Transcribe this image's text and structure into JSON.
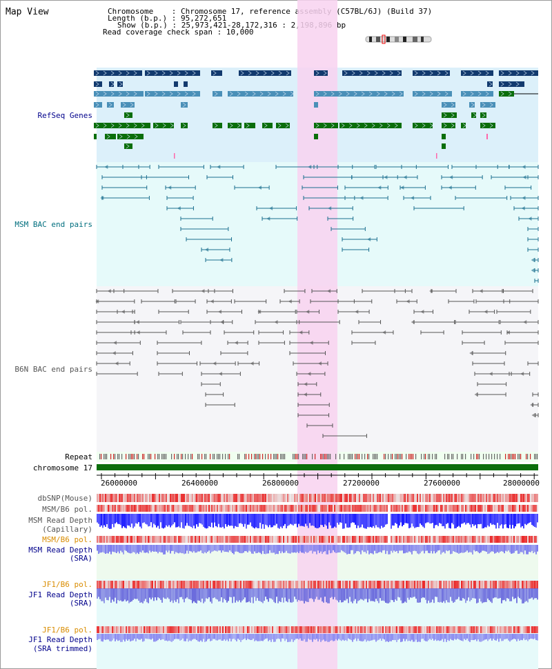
{
  "title": "Map View",
  "header": {
    "chromosome_line": "Chromosome    : Chromosome 17, reference assembly (C57BL/6J) (Build 37)",
    "length_line": "Length (b.p.) : 95,272,651",
    "show_line": "Show (b.p.) : 25,973,421-28,172,316 : 2,198,896 bp",
    "coverage_line": "Read coverage check span : 10,000"
  },
  "tracks": {
    "refseq": "RefSeq Genes",
    "msm_bac": "MSM BAC end pairs",
    "b6n_bac": "B6N BAC end pairs",
    "repeat": "Repeat",
    "chromosome": "chromosome 17",
    "dbsnp": "dbSNP(Mouse)",
    "msm_b6_pol_1": "MSM/B6 pol.",
    "msm_depth_cap_1": "MSM Read Depth",
    "msm_depth_cap_2": "(Capillary)",
    "msm_b6_pol_2": "MSM/B6 pol.",
    "msm_depth_sra_1": "MSM Read Depth",
    "msm_depth_sra_2": "(SRA)",
    "jf1_b6_pol_1": "JF1/B6 pol.",
    "jf1_depth_sra_1": "JF1 Read Depth",
    "jf1_depth_sra_2": "(SRA)",
    "jf1_b6_pol_2": "JF1/B6 pol.",
    "jf1_depth_trim_1": "JF1 Read Depth",
    "jf1_depth_trim_2": "(SRA trimmed)"
  },
  "axis": {
    "ticks": [
      "26000000",
      "26400000",
      "26800000",
      "27200000",
      "27600000",
      "28000000"
    ]
  },
  "colors": {
    "refseq_bg": "#dcf0fa",
    "msm_bg": "#e6fafa",
    "b6n_bg": "#f5f5f8",
    "highlight": "#f8d2f0",
    "gene_dark": "#123a6e",
    "gene_mid": "#4a90b8",
    "gene_green": "#0a6e0a",
    "msm_line": "#1a6e8e",
    "b6n_line": "#555555",
    "label_blue": "#00008b",
    "label_teal": "#006e7e",
    "label_orange": "#d98c00",
    "label_gray": "#555555"
  }
}
